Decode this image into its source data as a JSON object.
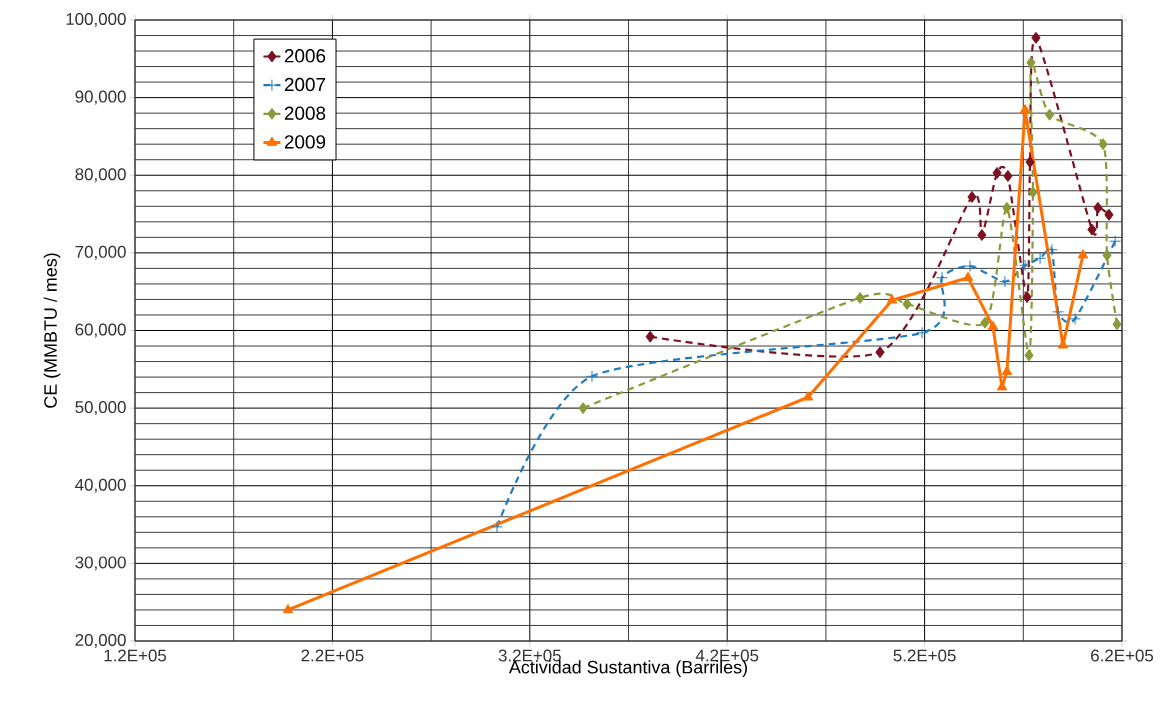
{
  "chart_data": {
    "type": "line",
    "xlabel": "Actividad Sustantiva (Barriles)",
    "ylabel": "CE  (MMBTU / mes)",
    "xlim": [
      120000,
      620000
    ],
    "ylim": [
      20000,
      100000
    ],
    "xticks": [
      {
        "value": 120000,
        "label": "1.2E+05"
      },
      {
        "value": 220000,
        "label": "2.2E+05"
      },
      {
        "value": 320000,
        "label": "3.2E+05"
      },
      {
        "value": 420000,
        "label": "4.2E+05"
      },
      {
        "value": 520000,
        "label": "5.2E+05"
      },
      {
        "value": 620000,
        "label": "6.2E+05"
      }
    ],
    "yticks": [
      {
        "value": 20000,
        "label": "20,000"
      },
      {
        "value": 30000,
        "label": "30,000"
      },
      {
        "value": 40000,
        "label": "40,000"
      },
      {
        "value": 50000,
        "label": "50,000"
      },
      {
        "value": 60000,
        "label": "60,000"
      },
      {
        "value": 70000,
        "label": "70,000"
      },
      {
        "value": 80000,
        "label": "80,000"
      },
      {
        "value": 90000,
        "label": "90,000"
      },
      {
        "value": 100000,
        "label": "100,000"
      }
    ],
    "grid": true,
    "legend": "top left",
    "series": [
      {
        "name": "2006",
        "color": "#7b1020",
        "marker": "diamond",
        "line_style": "dashed",
        "x": [
          381000,
          497400,
          544000,
          549000,
          556700,
          562200,
          571900,
          573400,
          576400,
          604800,
          607800,
          613400
        ],
        "values": [
          59200,
          57200,
          77200,
          72300,
          80300,
          79900,
          64300,
          81700,
          97700,
          73000,
          75800,
          74900
        ]
      },
      {
        "name": "2007",
        "color": "#1f7bc0",
        "marker": "cross",
        "line_style": "dashed",
        "x": [
          303400,
          351500,
          518700,
          528800,
          543000,
          560700,
          570900,
          578500,
          584500,
          587600,
          596200,
          616500
        ],
        "values": [
          34700,
          54100,
          59700,
          66800,
          68300,
          66300,
          68400,
          69300,
          70400,
          62400,
          61500,
          71500
        ]
      },
      {
        "name": "2008",
        "color": "#8a9a3a",
        "marker": "diamond",
        "line_style": "dashed",
        "x": [
          347000,
          487300,
          511100,
          550600,
          561700,
          572900,
          574900,
          573900,
          583300,
          610400,
          612400,
          617500
        ],
        "values": [
          50000,
          64200,
          63400,
          61000,
          75800,
          56800,
          77800,
          94500,
          87800,
          84000,
          69700,
          60800
        ]
      },
      {
        "name": "2009",
        "color": "#ff7000",
        "marker": "triangle",
        "line_style": "solid",
        "x": [
          197500,
          460900,
          503500,
          542000,
          554600,
          559200,
          561700,
          570900,
          590100,
          600200
        ],
        "values": [
          24000,
          51400,
          63900,
          66800,
          60500,
          52700,
          54700,
          88400,
          58100,
          69700
        ]
      }
    ]
  }
}
